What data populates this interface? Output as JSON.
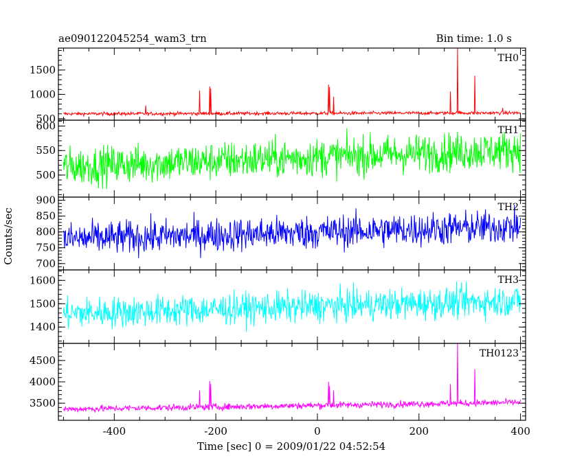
{
  "chart_data": {
    "type": "line",
    "title": "ae090122045254_wam3_trn",
    "subtitle": "Bin time: 1.0 s",
    "xlabel": "Time [sec] 0 = 2009/01/22 04:52:54",
    "ylabel": "Counts/sec",
    "xlim": [
      -510,
      410
    ],
    "x_ticks": [
      -400,
      -200,
      0,
      200,
      400
    ],
    "panels": [
      {
        "name": "TH0",
        "color": "#ff0000",
        "ylim": [
          470,
          1950
        ],
        "y_ticks": [
          500,
          1000,
          1500
        ],
        "baseline": 600,
        "baseline_trend": [
          0,
          20
        ],
        "noise": 25,
        "spikes": [
          {
            "x": -338,
            "y": 770
          },
          {
            "x": -232,
            "y": 1080
          },
          {
            "x": -212,
            "y": 1160
          },
          {
            "x": -210,
            "y": 1120
          },
          {
            "x": 22,
            "y": 1200
          },
          {
            "x": 24,
            "y": 1150
          },
          {
            "x": 32,
            "y": 950
          },
          {
            "x": 262,
            "y": 1060
          },
          {
            "x": 276,
            "y": 1950
          },
          {
            "x": 310,
            "y": 1380
          },
          {
            "x": 365,
            "y": 720
          }
        ]
      },
      {
        "name": "TH1",
        "color": "#00ff00",
        "ylim": [
          455,
          612
        ],
        "y_ticks": [
          500,
          550,
          600
        ],
        "baseline": 522,
        "baseline_trend": [
          -5,
          30
        ],
        "noise": 28,
        "spikes": []
      },
      {
        "name": "TH2",
        "color": "#0000ff",
        "ylim": [
          680,
          910
        ],
        "y_ticks": [
          700,
          750,
          800,
          850,
          900
        ],
        "baseline": 777,
        "baseline_trend": [
          0,
          40
        ],
        "noise": 38,
        "spikes": []
      },
      {
        "name": "TH3",
        "color": "#00ffff",
        "ylim": [
          1330,
          1645
        ],
        "y_ticks": [
          1400,
          1500,
          1600
        ],
        "baseline": 1458,
        "baseline_trend": [
          0,
          55
        ],
        "noise": 48,
        "spikes": []
      },
      {
        "name": "TH0123",
        "color": "#ff00ff",
        "ylim": [
          3100,
          4900
        ],
        "y_ticks": [
          3500,
          4000,
          4500
        ],
        "baseline": 3360,
        "baseline_trend": [
          0,
          160
        ],
        "noise": 55,
        "spikes": [
          {
            "x": -232,
            "y": 3800
          },
          {
            "x": -212,
            "y": 4020
          },
          {
            "x": -210,
            "y": 3950
          },
          {
            "x": 22,
            "y": 4000
          },
          {
            "x": 24,
            "y": 3900
          },
          {
            "x": 32,
            "y": 3800
          },
          {
            "x": 262,
            "y": 3950
          },
          {
            "x": 276,
            "y": 4900
          },
          {
            "x": 310,
            "y": 4300
          }
        ]
      }
    ]
  }
}
